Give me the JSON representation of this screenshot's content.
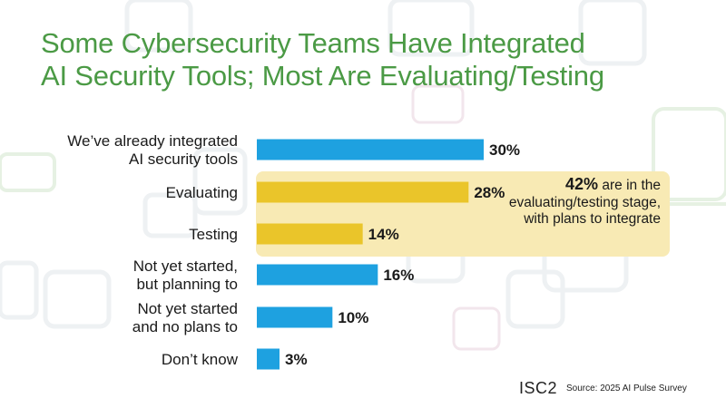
{
  "title": {
    "line1": "Some Cybersecurity Teams Have Integrated",
    "line2": "AI Security Tools; Most Are Evaluating/Testing"
  },
  "chart_data": {
    "type": "bar",
    "orientation": "horizontal",
    "categories": [
      [
        "We’ve already integrated",
        "AI security tools"
      ],
      [
        "Evaluating"
      ],
      [
        "Testing"
      ],
      [
        "Not yet started,",
        "but planning to"
      ],
      [
        "Not yet started",
        "and no plans to"
      ],
      [
        "Don’t know"
      ]
    ],
    "values": [
      30,
      28,
      14,
      16,
      10,
      3
    ],
    "value_labels": [
      "30%",
      "28%",
      "14%",
      "16%",
      "10%",
      "3%"
    ],
    "highlighted": [
      false,
      true,
      true,
      false,
      false,
      false
    ],
    "xlim": [
      0,
      100
    ],
    "grid": false,
    "legend": "none"
  },
  "callout": {
    "pct": "42%",
    "text": "are in the evaluating/testing stage, with plans to integrate"
  },
  "footer": {
    "logo": "ISC2",
    "source": "Source: 2025 AI Pulse Survey"
  },
  "colors": {
    "bar": "#1ea1e0",
    "bar_highlight": "#eac52a",
    "callout_bg": "#f8eab4",
    "title": "#4b9a45"
  }
}
